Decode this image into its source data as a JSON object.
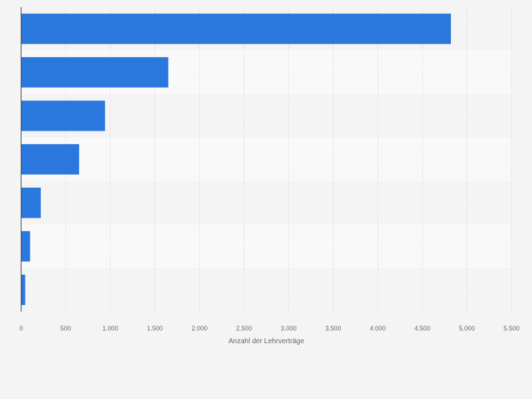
{
  "colors": {
    "bar": "#2a77dd",
    "background": "#f4f4f4",
    "band_light": "#f9f9f9",
    "band_dark": "#f4f4f4",
    "grid": "#d9d9d9",
    "axis": "#333333",
    "tick_text": "#666666"
  },
  "chart_data": {
    "type": "bar",
    "orientation": "horizontal",
    "categories": [
      "",
      "",
      "",
      "",
      "",
      "",
      ""
    ],
    "values": [
      4820,
      1650,
      940,
      650,
      220,
      100,
      45
    ],
    "xlabel": "Anzahl der Lehrverträge",
    "ylabel": "",
    "xlim": [
      0,
      5500
    ],
    "xticks": [
      0,
      500,
      1000,
      1500,
      2000,
      2500,
      3000,
      3500,
      4000,
      4500,
      5000,
      5500
    ],
    "xtick_labels": [
      "0",
      "500",
      "1.000",
      "1.500",
      "2.000",
      "2.500",
      "3.000",
      "3.500",
      "4.000",
      "4.500",
      "5.000",
      "5.500"
    ],
    "grid": true,
    "legend": "none"
  }
}
